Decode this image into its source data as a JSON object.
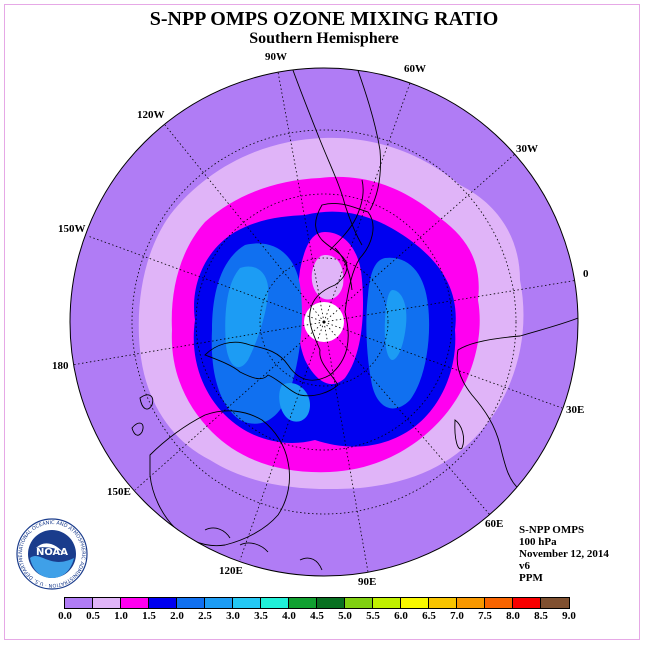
{
  "header": {
    "title": "S-NPP OMPS OZONE MIXING RATIO",
    "subtitle": "Southern Hemisphere"
  },
  "longitude_labels": [
    "90W",
    "60W",
    "30W",
    "0",
    "30E",
    "60E",
    "90E",
    "120E",
    "150E",
    "180",
    "150W",
    "120W"
  ],
  "info": {
    "instrument": "S-NPP OMPS",
    "level": "100 hPa",
    "date": "November 12, 2014",
    "version": "v6",
    "units": "PPM"
  },
  "logo": {
    "text": "NOAA",
    "ring_text": "NATIONAL OCEANIC AND ATMOSPHERIC ADMINISTRATION · U.S. DEPARTMENT OF COMMERCE"
  },
  "colorbar": {
    "ticks": [
      "0.0",
      "0.5",
      "1.0",
      "1.5",
      "2.0",
      "2.5",
      "3.0",
      "3.5",
      "4.0",
      "4.5",
      "5.0",
      "5.5",
      "6.0",
      "6.5",
      "7.0",
      "7.5",
      "8.0",
      "8.5",
      "9.0"
    ],
    "colors": [
      "#b07cf5",
      "#e0b4f8",
      "#ff00f0",
      "#0000f0",
      "#1070f0",
      "#1c9cf4",
      "#24c8f4",
      "#20f0d8",
      "#10a030",
      "#087020",
      "#80d010",
      "#c0f000",
      "#f8f800",
      "#f8c400",
      "#f89800",
      "#f86400",
      "#f80000",
      "#805030"
    ]
  }
}
